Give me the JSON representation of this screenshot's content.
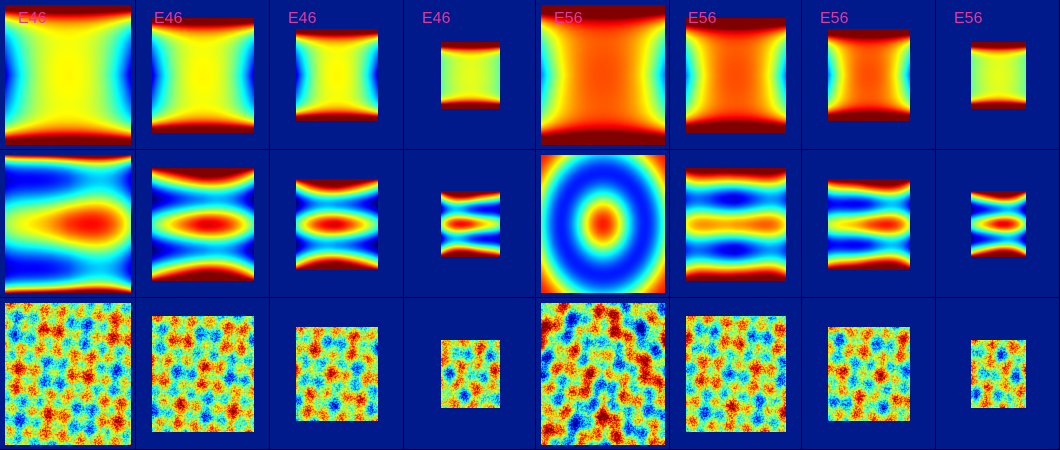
{
  "title": "",
  "colors": {
    "background": "#001a8c",
    "label": "#e3389f",
    "colormap": "jet"
  },
  "columns": [
    {
      "label": "E46",
      "shrink": 1.0
    },
    {
      "label": "E46",
      "shrink": 0.82
    },
    {
      "label": "E46",
      "shrink": 0.66
    },
    {
      "label": "E46",
      "shrink": 0.48
    },
    {
      "label": "E56",
      "shrink": 1.0
    },
    {
      "label": "E56",
      "shrink": 0.82
    },
    {
      "label": "E56",
      "shrink": 0.66
    },
    {
      "label": "E56",
      "shrink": 0.48
    }
  ],
  "rows": [
    {
      "kind": "smooth"
    },
    {
      "kind": "banded"
    },
    {
      "kind": "noisy"
    }
  ]
}
